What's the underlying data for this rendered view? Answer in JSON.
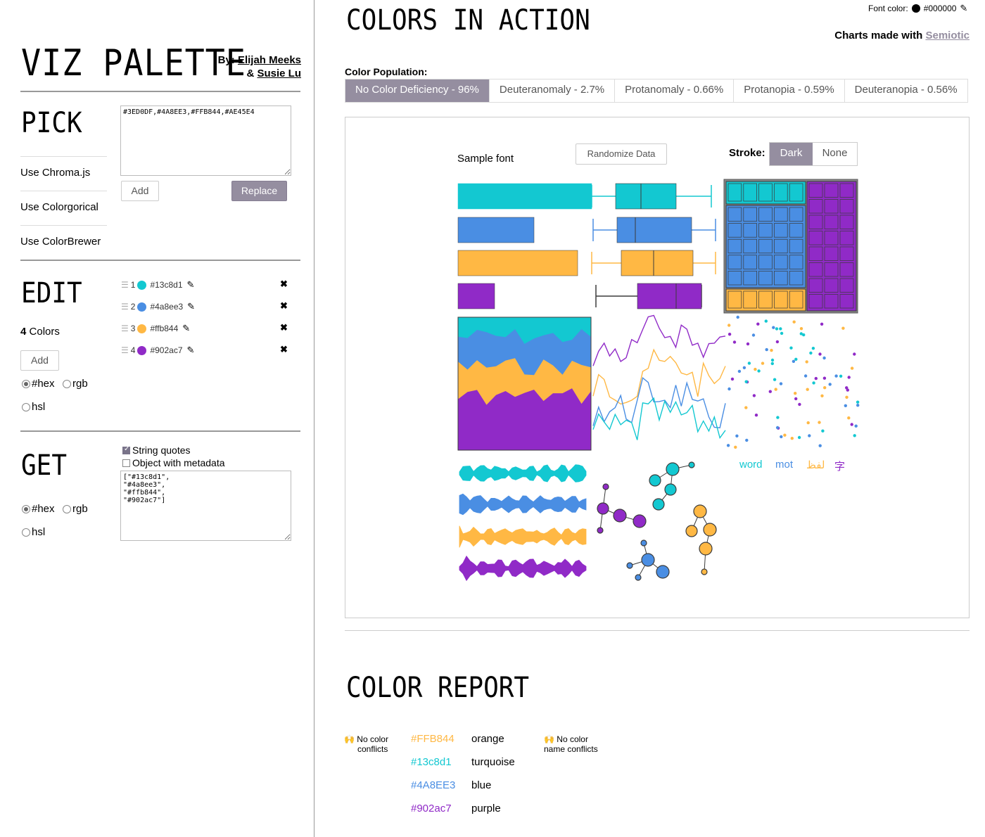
{
  "colors": [
    "#13c8d1",
    "#4a8ee3",
    "#ffb844",
    "#902ac7"
  ],
  "accent": "#958ea0",
  "header": {
    "font_color_label": "Font color:",
    "font_color_value": "#000000",
    "charts_made_with": "Charts made with",
    "semiotic": "Semiotic"
  },
  "sidebar": {
    "app_title": "VIZ PALETTE",
    "by_label": "By:",
    "author1": "Elijah Meeks",
    "amp": "&",
    "author2": "Susie Lu",
    "pick": {
      "heading": "PICK",
      "links": [
        "Use Chroma.js",
        "Use Colorgorical",
        "Use ColorBrewer"
      ],
      "textarea_value": "#3ED0DF,#4A8EE3,#FFB844,#AE45E4",
      "add_label": "Add",
      "replace_label": "Replace"
    },
    "edit": {
      "heading": "EDIT",
      "count_number": "4",
      "count_label": "Colors",
      "add_label": "Add",
      "items": [
        {
          "index": "1",
          "hex": "#13c8d1"
        },
        {
          "index": "2",
          "hex": "#4a8ee3"
        },
        {
          "index": "3",
          "hex": "#ffb844"
        },
        {
          "index": "4",
          "hex": "#902ac7"
        }
      ],
      "format_hex": "#hex",
      "format_rgb": "rgb",
      "format_hsl": "hsl"
    },
    "get": {
      "heading": "GET",
      "string_quotes": "String quotes",
      "object_metadata": "Object with metadata",
      "output": "[\"#13c8d1\",\n\"#4a8ee3\",\n\"#ffb844\",\n\"#902ac7\"]",
      "format_hex": "#hex",
      "format_rgb": "rgb",
      "format_hsl": "hsl"
    }
  },
  "main": {
    "title": "COLORS IN ACTION",
    "population_label": "Color Population:",
    "tabs": [
      "No Color Deficiency - 96%",
      "Deuteranomaly - 2.7%",
      "Protanomaly - 0.66%",
      "Protanopia - 0.59%",
      "Deuteranopia - 0.56%"
    ],
    "sample_font": "Sample font",
    "randomize": "Randomize Data",
    "stroke_label": "Stroke:",
    "stroke_dark": "Dark",
    "stroke_none": "None",
    "words": [
      "word",
      "mot",
      "لفظ",
      "字"
    ]
  },
  "report": {
    "title": "COLOR REPORT",
    "emoji": "🙌",
    "no_conflicts": [
      "No color",
      "conflicts"
    ],
    "no_name_conflicts": [
      "No color",
      "name conflicts"
    ],
    "rows": [
      {
        "hex": "#FFB844",
        "name": "orange",
        "color": "#ffb844"
      },
      {
        "hex": "#13c8d1",
        "name": "turquoise",
        "color": "#13c8d1"
      },
      {
        "hex": "#4A8EE3",
        "name": "blue",
        "color": "#4a8ee3"
      },
      {
        "hex": "#902ac7",
        "name": "purple",
        "color": "#902ac7"
      }
    ]
  }
}
